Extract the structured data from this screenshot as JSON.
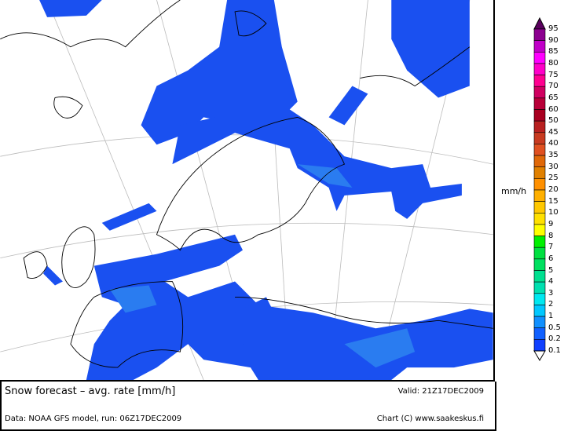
{
  "footer": {
    "title": "Snow forecast – avg. rate [mm/h]",
    "valid": "Valid: 21Z17DEC2009",
    "data_source": "Data: NOAA GFS model, run: 06Z17DEC2009",
    "credit": "Chart (C) www.saakeskus.fi"
  },
  "legend": {
    "unit": "mm/h",
    "labels": [
      "95",
      "90",
      "85",
      "80",
      "75",
      "70",
      "65",
      "60",
      "50",
      "45",
      "40",
      "35",
      "30",
      "25",
      "20",
      "15",
      "10",
      "9",
      "8",
      "7",
      "6",
      "5",
      "4",
      "3",
      "2",
      "1",
      "0.5",
      "0.2",
      "0.1"
    ],
    "colors": [
      "#5a005e",
      "#8c0090",
      "#c000c8",
      "#ff00ff",
      "#ff00c8",
      "#ff0090",
      "#d00060",
      "#b80038",
      "#a80020",
      "#b82020",
      "#c83a20",
      "#e05020",
      "#e06808",
      "#e08000",
      "#ff9000",
      "#ffb000",
      "#ffc800",
      "#ffe000",
      "#ffff00",
      "#00f000",
      "#00e040",
      "#00e060",
      "#00e090",
      "#00e0b0",
      "#00e8f0",
      "#00c8ff",
      "#1090ff",
      "#1060ff",
      "#1040ff",
      "#ffffff"
    ]
  },
  "map": {
    "snow_color": "#1a50f0",
    "snow_light": "#2a7cf0"
  }
}
